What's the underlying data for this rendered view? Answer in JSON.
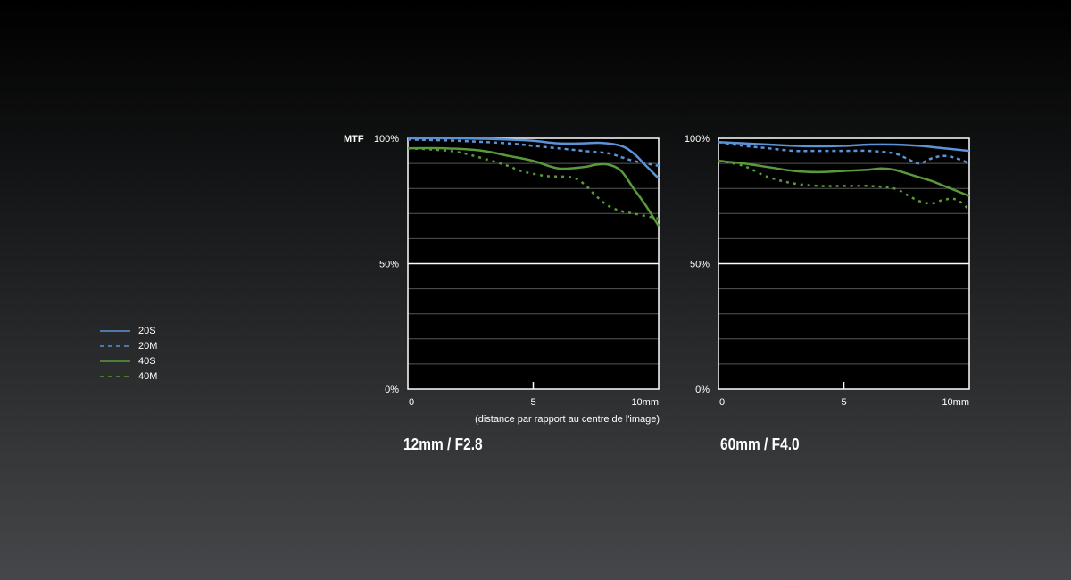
{
  "colors": {
    "S20": "#5b93d6",
    "S40": "#5a9a3c",
    "grid": "#555555",
    "plot_bg": "#000000",
    "text": "#ffffff"
  },
  "legend": [
    {
      "label": "20S",
      "color": "#5b93d6",
      "dash": "solid"
    },
    {
      "label": "20M",
      "color": "#5b93d6",
      "dash": "dashed"
    },
    {
      "label": "40S",
      "color": "#5a9a3c",
      "dash": "solid"
    },
    {
      "label": "40M",
      "color": "#5a9a3c",
      "dash": "dashed"
    }
  ],
  "chart_data": [
    {
      "type": "line",
      "title": "12mm / F2.8",
      "ylabel": "MTF",
      "xlabel": "(distance par rapport au centre de l'image)",
      "xlim": [
        0,
        10
      ],
      "ylim": [
        0,
        100
      ],
      "x_ticks": [
        {
          "value": 0,
          "label": "0"
        },
        {
          "value": 5,
          "label": "5"
        },
        {
          "value": 10,
          "label": "10mm"
        }
      ],
      "y_ticks": [
        {
          "value": 0,
          "label": "0%"
        },
        {
          "value": 50,
          "label": "50%"
        },
        {
          "value": 100,
          "label": "100%"
        }
      ],
      "grid": true,
      "series": [
        {
          "name": "20S",
          "x": [
            0,
            2,
            4,
            5,
            6,
            7,
            7.7,
            8.5,
            9.0,
            9.5,
            10
          ],
          "y": [
            100,
            100,
            99.5,
            99,
            98,
            98,
            98.2,
            97,
            94,
            89,
            84
          ]
        },
        {
          "name": "20M",
          "x": [
            0,
            2,
            4,
            5,
            6,
            7,
            8,
            8.5,
            9,
            9.5,
            10
          ],
          "y": [
            99.5,
            99,
            98,
            97,
            96,
            95,
            94,
            92.5,
            91,
            90,
            89
          ]
        },
        {
          "name": "40S",
          "x": [
            0,
            1.5,
            3,
            4,
            5,
            6,
            7,
            7.5,
            8,
            8.5,
            9,
            9.5,
            10
          ],
          "y": [
            96,
            96,
            95,
            93,
            91,
            88,
            88.5,
            89.5,
            89.5,
            87,
            80,
            73,
            65
          ]
        },
        {
          "name": "40M",
          "x": [
            0,
            1,
            2,
            3,
            4,
            4.5,
            5.5,
            6.5,
            7,
            7.5,
            8,
            8.5,
            9,
            9.5,
            10
          ],
          "y": [
            96,
            95.5,
            94.5,
            92,
            89,
            87,
            85,
            84.5,
            82,
            77,
            73,
            71,
            70,
            69,
            68
          ]
        }
      ]
    },
    {
      "type": "line",
      "title": "60mm / F4.0",
      "ylabel": "",
      "xlabel": "",
      "xlim": [
        0,
        10
      ],
      "ylim": [
        0,
        100
      ],
      "x_ticks": [
        {
          "value": 0,
          "label": "0"
        },
        {
          "value": 5,
          "label": "5"
        },
        {
          "value": 10,
          "label": "10mm"
        }
      ],
      "y_ticks": [
        {
          "value": 0,
          "label": "0%"
        },
        {
          "value": 50,
          "label": "50%"
        },
        {
          "value": 100,
          "label": "100%"
        }
      ],
      "grid": true,
      "series": [
        {
          "name": "20S",
          "x": [
            0,
            1,
            2,
            3,
            4,
            5,
            6,
            7,
            8,
            9,
            10
          ],
          "y": [
            98.5,
            98,
            97.5,
            97,
            96.8,
            97,
            97.5,
            97.5,
            97,
            96,
            95
          ]
        },
        {
          "name": "20M",
          "x": [
            0,
            1,
            2,
            3,
            4,
            5,
            6,
            7,
            7.5,
            8,
            8.5,
            9,
            9.5,
            10
          ],
          "y": [
            98.5,
            97,
            96,
            95,
            95,
            95,
            95,
            94,
            92,
            90,
            92,
            93,
            92,
            90
          ]
        },
        {
          "name": "40S",
          "x": [
            0,
            1,
            2,
            3,
            4,
            5,
            6,
            6.5,
            7,
            7.5,
            8,
            8.5,
            9,
            9.5,
            10
          ],
          "y": [
            91,
            90,
            88.5,
            87,
            86.5,
            87,
            87.5,
            88,
            87.5,
            86,
            84.5,
            83,
            81,
            79,
            77
          ]
        },
        {
          "name": "40M",
          "x": [
            0,
            1,
            2,
            3,
            4,
            5,
            6,
            7,
            7.5,
            8,
            8.5,
            9,
            9.5,
            10
          ],
          "y": [
            91,
            89,
            84.5,
            82,
            81,
            81,
            81,
            80,
            77.5,
            75,
            74,
            75.5,
            75.5,
            71.5
          ]
        }
      ]
    }
  ]
}
